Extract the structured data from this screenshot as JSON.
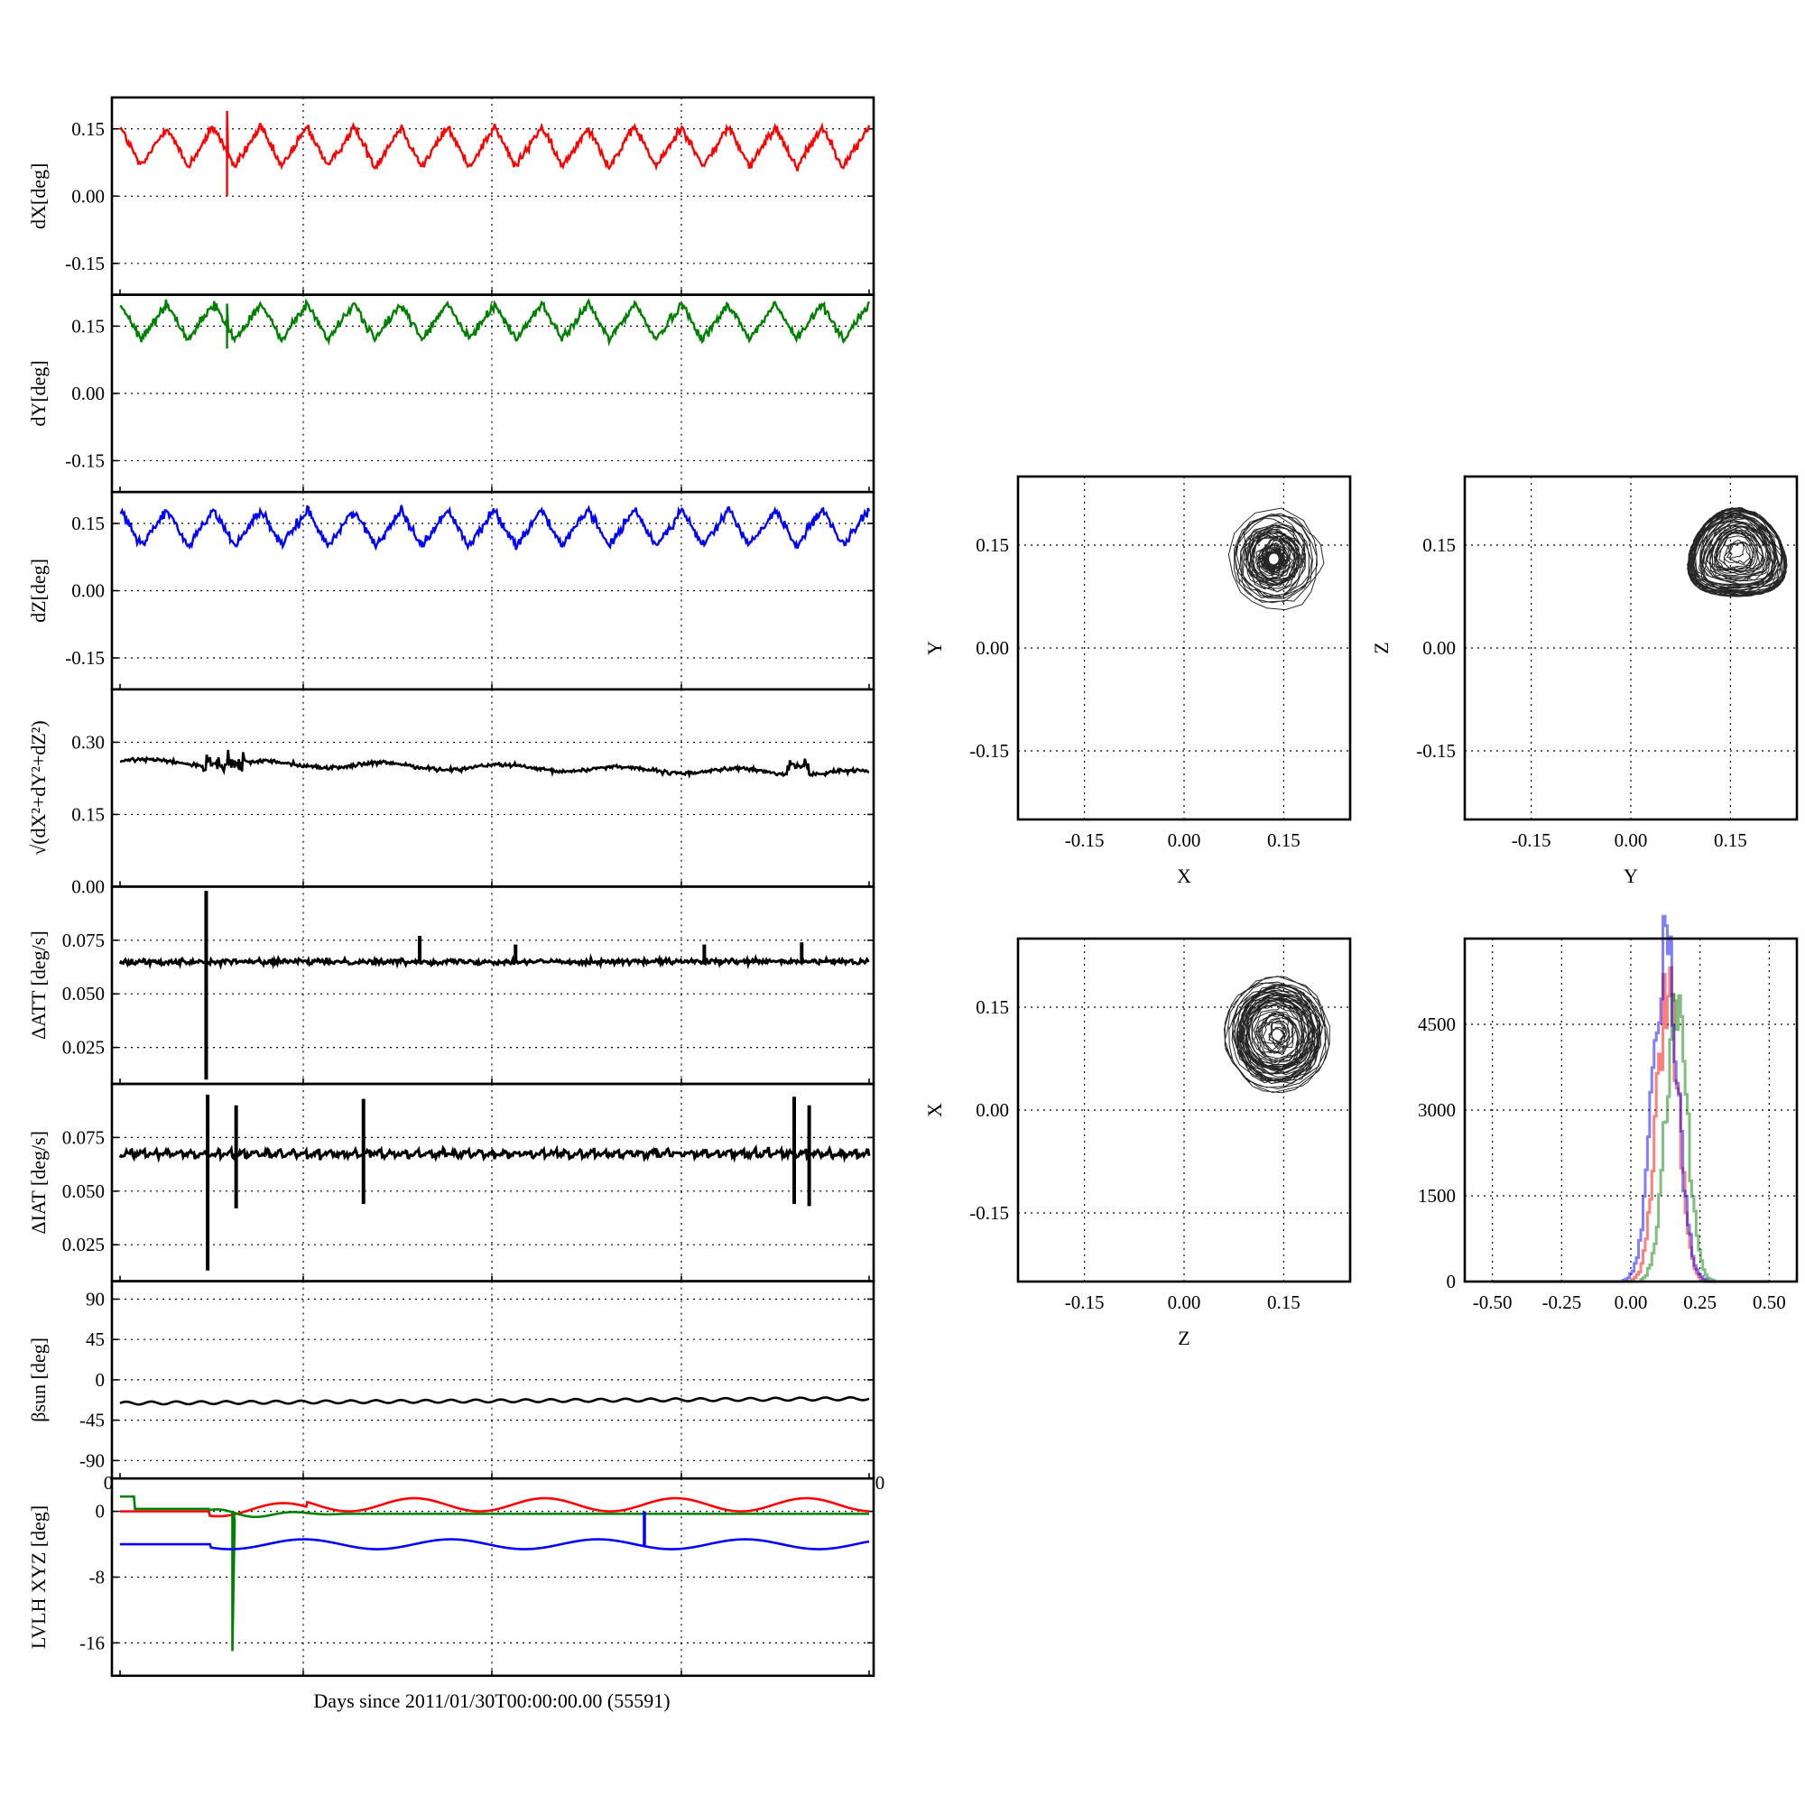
{
  "colors": {
    "red": "#ff0000",
    "green": "#008000",
    "blue": "#0000ff",
    "black": "#000000"
  },
  "chart_data": [
    {
      "type": "line",
      "ylabel": "dX[deg]",
      "ylim": [
        -0.22,
        0.22
      ],
      "yticks": [
        "-0.15",
        "0.00",
        "0.15"
      ],
      "ytick_values": [
        -0.15,
        0,
        0.15
      ],
      "grid": true,
      "series": [
        {
          "color": "red",
          "baseline": 0.11,
          "amplitude": 0.045,
          "cycles": 16,
          "noise": 0.01
        }
      ]
    },
    {
      "type": "line",
      "ylabel": "dY[deg]",
      "ylim": [
        -0.22,
        0.22
      ],
      "yticks": [
        "-0.15",
        "0.00",
        "0.15"
      ],
      "ytick_values": [
        -0.15,
        0,
        0.15
      ],
      "grid": true,
      "series": [
        {
          "color": "green",
          "baseline": 0.16,
          "amplitude": 0.04,
          "cycles": 16,
          "noise": 0.01
        }
      ]
    },
    {
      "type": "line",
      "ylabel": "dZ[deg]",
      "ylim": [
        -0.22,
        0.22
      ],
      "yticks": [
        "-0.15",
        "0.00",
        "0.15"
      ],
      "ytick_values": [
        -0.15,
        0,
        0.15
      ],
      "grid": true,
      "series": [
        {
          "color": "blue",
          "baseline": 0.14,
          "amplitude": 0.04,
          "cycles": 16,
          "noise": 0.01
        }
      ]
    },
    {
      "type": "line",
      "ylabel": "√(dX²+dY²+dZ²)",
      "ylim": [
        0,
        0.41
      ],
      "yticks": [
        "0.00",
        "0.15",
        "0.30"
      ],
      "ytick_values": [
        0,
        0.15,
        0.3
      ],
      "grid": true,
      "series": [
        {
          "color": "black",
          "start": 0.26,
          "end": 0.235,
          "noise": 0.004
        }
      ]
    },
    {
      "type": "line",
      "ylabel": "ΔATT [deg/s]",
      "ylim": [
        0.008,
        0.1
      ],
      "yticks": [
        "0.025",
        "0.050",
        "0.075"
      ],
      "ytick_values": [
        0.025,
        0.05,
        0.075
      ],
      "grid": true,
      "series": [
        {
          "color": "black",
          "baseline": 0.065,
          "spikes": [
            [
              0.115,
              0.01,
              0.098
            ],
            [
              0.4,
              0.065,
              0.077
            ],
            [
              0.528,
              0.065,
              0.073
            ],
            [
              0.78,
              0.065,
              0.073
            ],
            [
              0.91,
              0.065,
              0.074
            ]
          ]
        }
      ]
    },
    {
      "type": "line",
      "ylabel": "ΔIAT [deg/s]",
      "ylim": [
        0.008,
        0.1
      ],
      "yticks": [
        "0.025",
        "0.050",
        "0.075"
      ],
      "ytick_values": [
        0.025,
        0.05,
        0.075
      ],
      "grid": true,
      "series": [
        {
          "color": "black",
          "baseline": 0.066,
          "spikes": [
            [
              0.117,
              0.013,
              0.095
            ],
            [
              0.155,
              0.042,
              0.09
            ],
            [
              0.325,
              0.044,
              0.093
            ],
            [
              0.9,
              0.044,
              0.094
            ],
            [
              0.92,
              0.043,
              0.09
            ]
          ]
        }
      ]
    },
    {
      "type": "line",
      "ylabel": "βsun [deg]",
      "ylim": [
        -110,
        110
      ],
      "yticks": [
        "-90",
        "-45",
        "0",
        "45",
        "90"
      ],
      "ytick_values": [
        -90,
        -45,
        0,
        45,
        90
      ],
      "grid": true,
      "series": [
        {
          "color": "black",
          "start": -26,
          "end": -21,
          "amplitude": 1.6,
          "cycles": 30
        }
      ]
    },
    {
      "type": "line",
      "ylabel": "LVLH XYZ [deg]",
      "ylim": [
        -20,
        4
      ],
      "yticks": [
        "-16",
        "-8",
        "0"
      ],
      "ytick_values": [
        -16,
        -8,
        0
      ],
      "grid": true,
      "series": [
        {
          "color": "red",
          "baseline": 0.8
        },
        {
          "color": "green",
          "baseline": -0.3
        },
        {
          "color": "blue",
          "baseline": -4
        }
      ]
    },
    {
      "type": "scatter",
      "xlabel": "X",
      "ylabel": "Y",
      "xlim": [
        -0.25,
        0.25
      ],
      "ylim": [
        -0.25,
        0.25
      ],
      "ticks": [
        "-0.15",
        "0.00",
        "0.15"
      ],
      "tick_values": [
        -0.15,
        0,
        0.15
      ],
      "grid": true,
      "cloud": {
        "cx": 0.135,
        "cy": 0.13,
        "rx": 0.08,
        "ry": 0.085
      }
    },
    {
      "type": "scatter",
      "xlabel": "Y",
      "ylabel": "Z",
      "xlim": [
        -0.25,
        0.25
      ],
      "ylim": [
        -0.25,
        0.25
      ],
      "ticks": [
        "-0.15",
        "0.00",
        "0.15"
      ],
      "tick_values": [
        -0.15,
        0,
        0.15
      ],
      "grid": true,
      "cloud": {
        "cx": 0.16,
        "cy": 0.14,
        "rx": 0.075,
        "ry": 0.065
      }
    },
    {
      "type": "scatter",
      "xlabel": "Z",
      "ylabel": "X",
      "xlim": [
        -0.25,
        0.25
      ],
      "ylim": [
        -0.25,
        0.25
      ],
      "ticks": [
        "-0.15",
        "0.00",
        "0.15"
      ],
      "tick_values": [
        -0.15,
        0,
        0.15
      ],
      "grid": true,
      "cloud": {
        "cx": 0.14,
        "cy": 0.11,
        "rx": 0.08,
        "ry": 0.085
      }
    },
    {
      "type": "histogram",
      "xlim": [
        -0.6,
        0.6
      ],
      "ylim": [
        0,
        6000
      ],
      "xticks": [
        "-0.50",
        "-0.25",
        "0.00",
        "0.25",
        "0.50"
      ],
      "xtick_values": [
        -0.5,
        -0.25,
        0,
        0.25,
        0.5
      ],
      "yticks": [
        "0",
        "1500",
        "3000",
        "4500"
      ],
      "ytick_values": [
        0,
        1500,
        3000,
        4500
      ],
      "grid": true,
      "series": [
        {
          "color": "red",
          "center": 0.13,
          "width": 0.04,
          "peak": 5000
        },
        {
          "color": "green",
          "center": 0.16,
          "width": 0.04,
          "peak": 4700
        },
        {
          "color": "blue",
          "center": 0.12,
          "width": 0.045,
          "peak": 5800
        }
      ]
    }
  ],
  "xlabel_shared": "Days since 2011/01/30T00:00:00.00 (55591)",
  "stray_ticks": [
    "0",
    "0"
  ]
}
